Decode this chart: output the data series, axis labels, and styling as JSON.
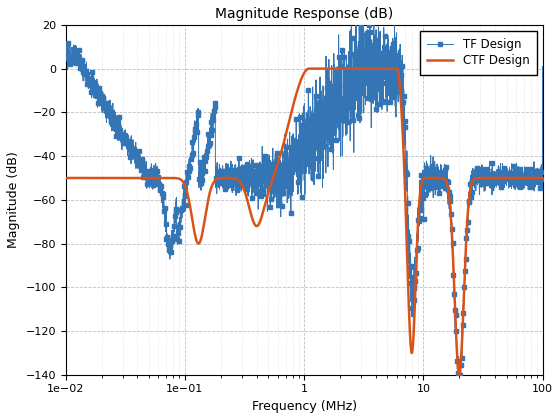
{
  "title": "Magnitude Response (dB)",
  "xlabel": "Frequency (MHz)",
  "ylabel": "Magnitude (dB)",
  "xlim": [
    0.01,
    100
  ],
  "ylim": [
    -140,
    20
  ],
  "yticks": [
    20,
    0,
    -20,
    -40,
    -60,
    -80,
    -100,
    -120,
    -140
  ],
  "tf_color": "#3375B5",
  "ctf_color": "#D95319",
  "tf_label": "TF Design",
  "ctf_label": "CTF Design",
  "background_color": "#ffffff",
  "grid_color": "#b0b0b0",
  "grid_minor_color": "#d0d0d0"
}
